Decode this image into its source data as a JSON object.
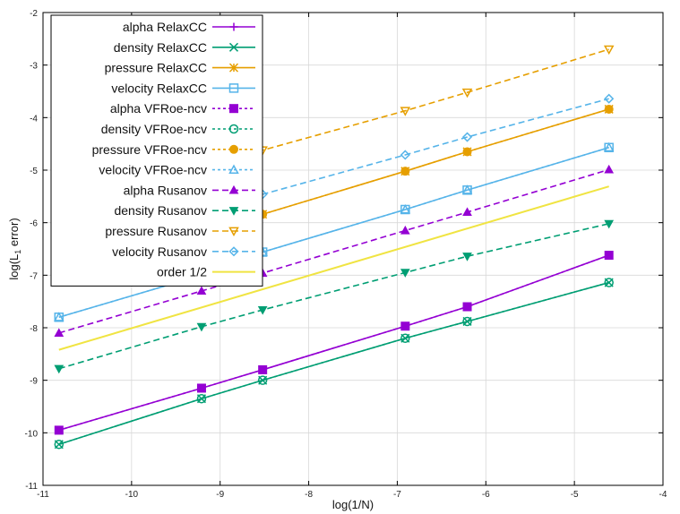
{
  "chart_data": {
    "type": "line",
    "title": "",
    "xlabel": "log(1/N)",
    "ylabel_main": "log(L",
    "ylabel_sub": "1",
    "ylabel_tail": " error)",
    "xlim": [
      -11,
      -4
    ],
    "ylim": [
      -11,
      -2
    ],
    "xticks": [
      "-11",
      "-10",
      "-9",
      "-8",
      "-7",
      "-6",
      "-5",
      "-4"
    ],
    "yticks": [
      "-11",
      "-10",
      "-9",
      "-8",
      "-7",
      "-6",
      "-5",
      "-4",
      "-3",
      "-2"
    ],
    "grid": true,
    "legend_position": "top-left",
    "x": [
      -10.82,
      -9.21,
      -8.52,
      -6.91,
      -6.21,
      -4.61
    ],
    "series": [
      {
        "name": "alpha RelaxCC",
        "color": "#9400d3",
        "dash": "solid",
        "marker": "plus",
        "values": [
          -9.95,
          -9.15,
          -8.8,
          -7.97,
          -7.6,
          -6.62
        ]
      },
      {
        "name": "density RelaxCC",
        "color": "#009e73",
        "dash": "solid",
        "marker": "cross",
        "values": [
          -10.22,
          -9.35,
          -9.0,
          -8.2,
          -7.88,
          -7.14
        ]
      },
      {
        "name": "pressure RelaxCC",
        "color": "#e69f00",
        "dash": "solid",
        "marker": "star",
        "values": [
          -6.7,
          -6.2,
          -5.84,
          -5.02,
          -4.65,
          -3.84
        ]
      },
      {
        "name": "velocity RelaxCC",
        "color": "#56b4e9",
        "dash": "solid",
        "marker": "box",
        "values": [
          -7.8,
          -7.0,
          -6.56,
          -5.75,
          -5.38,
          -4.57
        ]
      },
      {
        "name": "alpha VFRoe-ncv",
        "color": "#9400d3",
        "dash": "dot",
        "marker": "filled-box",
        "values": [
          -9.95,
          -9.15,
          -8.8,
          -7.97,
          -7.6,
          -6.62
        ]
      },
      {
        "name": "density VFRoe-ncv",
        "color": "#009e73",
        "dash": "dot",
        "marker": "circle",
        "values": [
          -10.22,
          -9.35,
          -9.0,
          -8.2,
          -7.88,
          -7.14
        ]
      },
      {
        "name": "pressure VFRoe-ncv",
        "color": "#e69f00",
        "dash": "dot",
        "marker": "filled-circle",
        "values": [
          -6.7,
          -6.2,
          -5.84,
          -5.02,
          -4.65,
          -3.84
        ]
      },
      {
        "name": "velocity VFRoe-ncv",
        "color": "#56b4e9",
        "dash": "dot",
        "marker": "triangle",
        "values": [
          -7.8,
          -7.0,
          -6.56,
          -5.75,
          -5.38,
          -4.57
        ]
      },
      {
        "name": "alpha Rusanov",
        "color": "#9400d3",
        "dash": "dash",
        "marker": "filled-triangle",
        "values": [
          -8.1,
          -7.3,
          -6.96,
          -6.15,
          -5.8,
          -4.99
        ]
      },
      {
        "name": "density Rusanov",
        "color": "#009e73",
        "dash": "dash",
        "marker": "filled-triangle-down",
        "values": [
          -8.78,
          -7.98,
          -7.66,
          -6.95,
          -6.64,
          -6.02
        ]
      },
      {
        "name": "pressure Rusanov",
        "color": "#e69f00",
        "dash": "dash",
        "marker": "triangle-down",
        "values": [
          -7.08,
          -5.28,
          -4.62,
          -3.87,
          -3.52,
          -2.7
        ]
      },
      {
        "name": "velocity Rusanov",
        "color": "#56b4e9",
        "dash": "dash",
        "marker": "diamond",
        "values": [
          -6.9,
          -5.95,
          -5.46,
          -4.71,
          -4.37,
          -3.64
        ]
      },
      {
        "name": "order 1/2",
        "color": "#f0e442",
        "dash": "solid",
        "marker": "none",
        "x": [
          -10.82,
          -4.61
        ],
        "values": [
          -8.42,
          -5.31
        ]
      }
    ]
  }
}
